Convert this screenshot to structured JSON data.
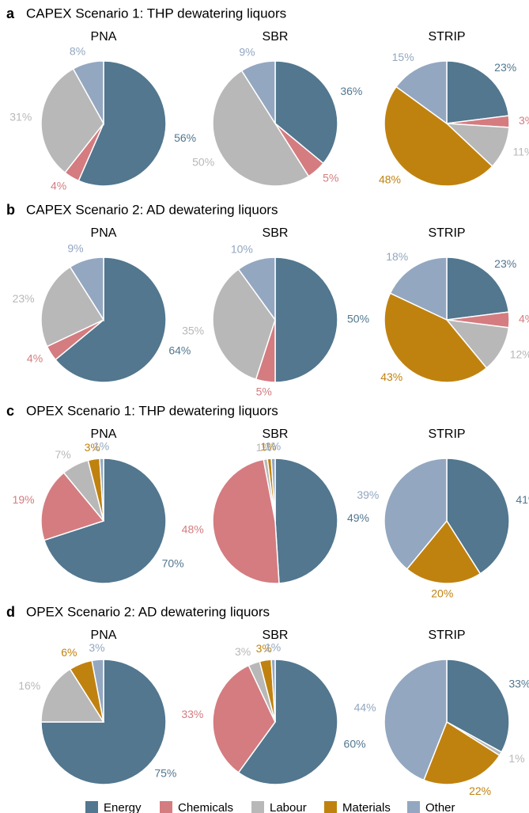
{
  "panels": [
    {
      "letter": "a",
      "title": "CAPEX Scenario 1: THP dewatering liquors"
    },
    {
      "letter": "b",
      "title": "CAPEX Scenario 2: AD dewatering liquors"
    },
    {
      "letter": "c",
      "title": "OPEX Scenario 1: THP dewatering liquors"
    },
    {
      "letter": "d",
      "title": "OPEX Scenario 2: AD dewatering liquors"
    }
  ],
  "legend": {
    "categories": [
      "Energy",
      "Chemicals",
      "Labour",
      "Materials",
      "Other"
    ],
    "colors": [
      "#52778f",
      "#d47c80",
      "#b8b8b8",
      "#c0820f",
      "#93a7c0"
    ]
  },
  "chart_data": [
    {
      "type": "pie",
      "title": "PNA",
      "values": [
        56,
        4,
        31,
        null,
        8
      ],
      "value_labels": [
        "56%",
        "4%",
        "31%",
        null,
        "8%"
      ]
    },
    {
      "type": "pie",
      "title": "SBR",
      "values": [
        36,
        5,
        50,
        null,
        9
      ],
      "value_labels": [
        "36%",
        "5%",
        "50%",
        null,
        "9%"
      ]
    },
    {
      "type": "pie",
      "title": "STRIP",
      "values": [
        23,
        3,
        11,
        48,
        15
      ],
      "value_labels": [
        "23%",
        "3%",
        "11%",
        "48%",
        "15%"
      ]
    },
    {
      "type": "pie",
      "title": "PNA",
      "values": [
        64,
        4,
        23,
        null,
        9
      ],
      "value_labels": [
        "64%",
        "4%",
        "23%",
        null,
        "9%"
      ]
    },
    {
      "type": "pie",
      "title": "SBR",
      "values": [
        50,
        5,
        35,
        null,
        10
      ],
      "value_labels": [
        "50%",
        "5%",
        "35%",
        null,
        "10%"
      ]
    },
    {
      "type": "pie",
      "title": "STRIP",
      "values": [
        23,
        4,
        12,
        43,
        18
      ],
      "value_labels": [
        "23%",
        "4%",
        "12%",
        "43%",
        "18%"
      ]
    },
    {
      "type": "pie",
      "title": "PNA",
      "values": [
        70,
        19,
        7,
        3,
        1
      ],
      "value_labels": [
        "70%",
        "19%",
        "7%",
        "3%",
        "1%"
      ]
    },
    {
      "type": "pie",
      "title": "SBR",
      "values": [
        49,
        48,
        1,
        1,
        1
      ],
      "value_labels": [
        "49%",
        "48%",
        "1%",
        "1%",
        "1%"
      ]
    },
    {
      "type": "pie",
      "title": "STRIP",
      "values": [
        41,
        null,
        null,
        20,
        39
      ],
      "value_labels": [
        "41%",
        null,
        null,
        "20%",
        "39%"
      ]
    },
    {
      "type": "pie",
      "title": "PNA",
      "values": [
        75,
        null,
        16,
        6,
        3
      ],
      "value_labels": [
        "75%",
        null,
        "16%",
        "6%",
        "3%"
      ]
    },
    {
      "type": "pie",
      "title": "SBR",
      "values": [
        60,
        33,
        3,
        3,
        1
      ],
      "value_labels": [
        "60%",
        "33%",
        "3%",
        "3%",
        "1%"
      ]
    },
    {
      "type": "pie",
      "title": "STRIP",
      "values": [
        33,
        null,
        1,
        22,
        44
      ],
      "value_labels": [
        "33%",
        null,
        "1%",
        "22%",
        "44%"
      ]
    }
  ]
}
